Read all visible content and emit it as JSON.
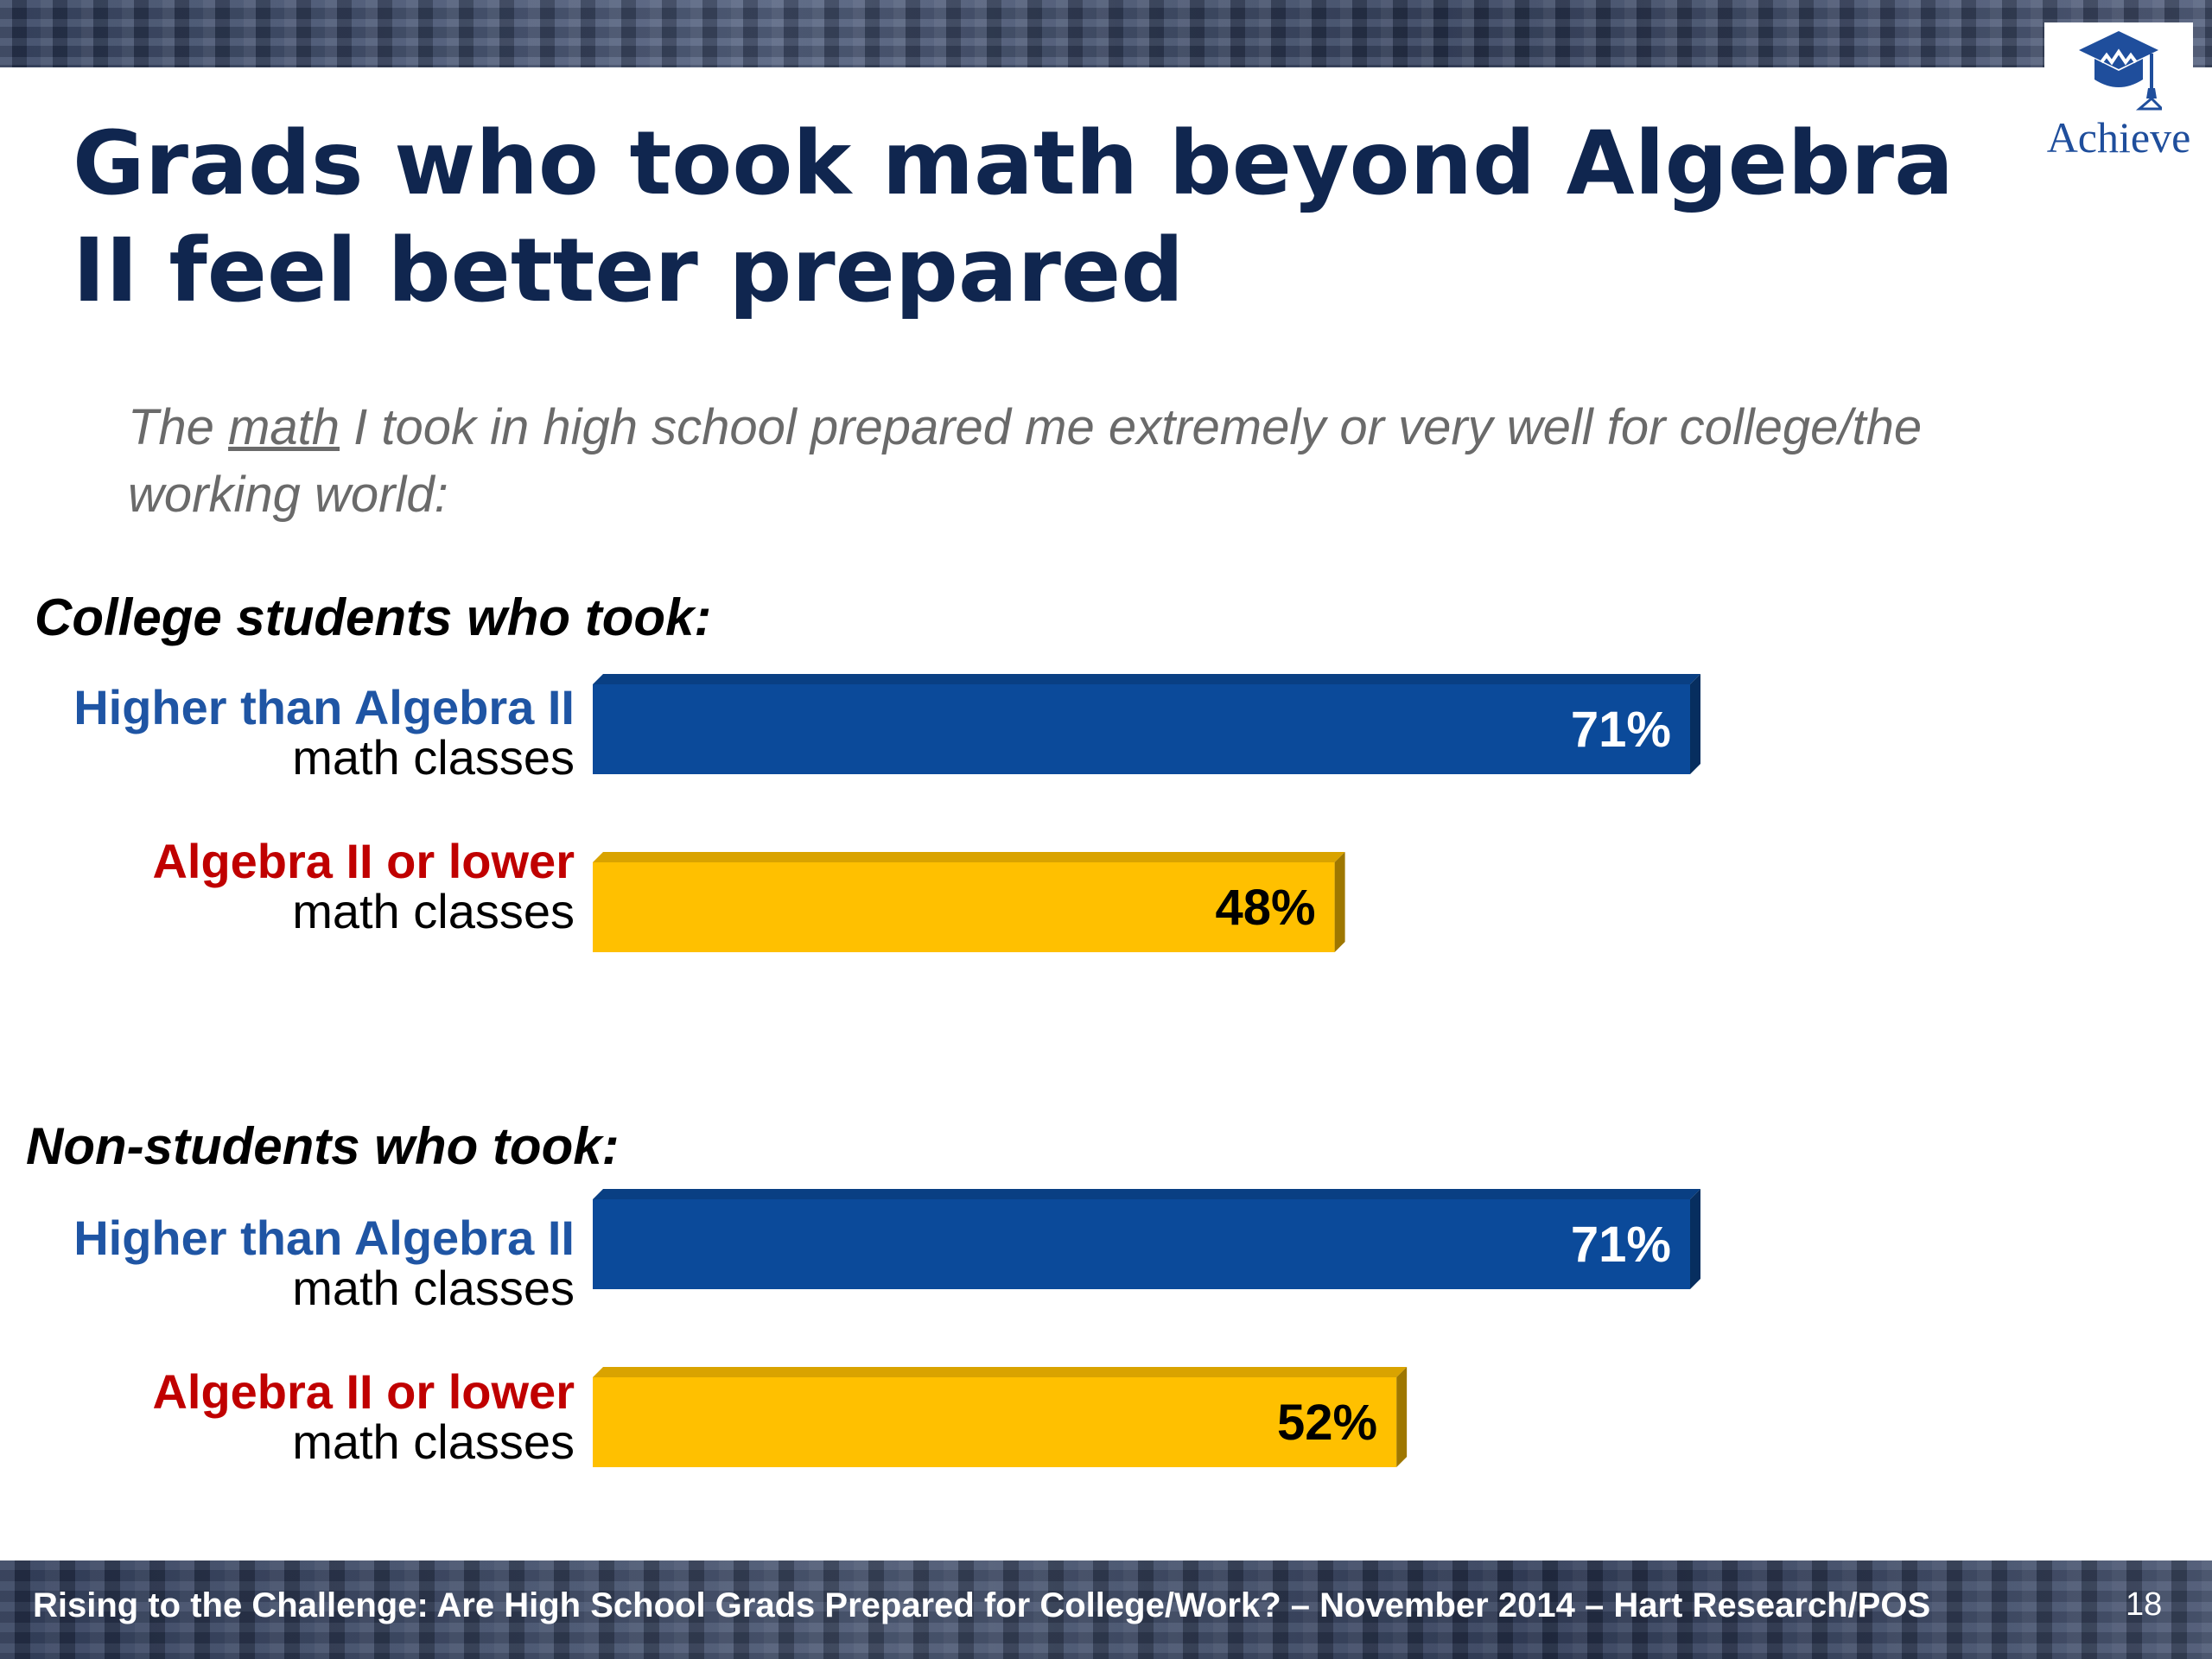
{
  "title": "Grads who took math beyond Algebra II feel better prepared",
  "subtitle": {
    "pre": "The ",
    "underlined": "math",
    "post": " I took in high school prepared me extremely or very well for college/the working world:"
  },
  "logo": {
    "text": "Achieve",
    "icon": "graduation-cap-icon"
  },
  "chart_data": {
    "type": "bar",
    "orientation": "horizontal",
    "unit": "%",
    "xlim": [
      0,
      100
    ],
    "grid": false,
    "groups": [
      {
        "title": "College students who took:",
        "bars": [
          {
            "label_line1": "Higher than Algebra II",
            "label_line2": "math classes",
            "value": 71,
            "value_label": "71%",
            "color": "#0b4a9a",
            "label_color": "#1f55a4",
            "text_color": "#ffffff"
          },
          {
            "label_line1": "Algebra II or lower",
            "label_line2": "math classes",
            "value": 48,
            "value_label": "48%",
            "color": "#ffc000",
            "label_color": "#c00000",
            "text_color": "#000000"
          }
        ]
      },
      {
        "title": "Non-students who took:",
        "bars": [
          {
            "label_line1": "Higher than Algebra II",
            "label_line2": "math classes",
            "value": 71,
            "value_label": "71%",
            "color": "#0b4a9a",
            "label_color": "#1f55a4",
            "text_color": "#ffffff"
          },
          {
            "label_line1": "Algebra II or lower",
            "label_line2": "math classes",
            "value": 52,
            "value_label": "52%",
            "color": "#ffc000",
            "label_color": "#c00000",
            "text_color": "#000000"
          }
        ]
      }
    ]
  },
  "footer": {
    "text": "Rising to the Challenge:  Are High School Grads Prepared for College/Work? – November 2014 – Hart Research/POS",
    "page_number": "18"
  }
}
